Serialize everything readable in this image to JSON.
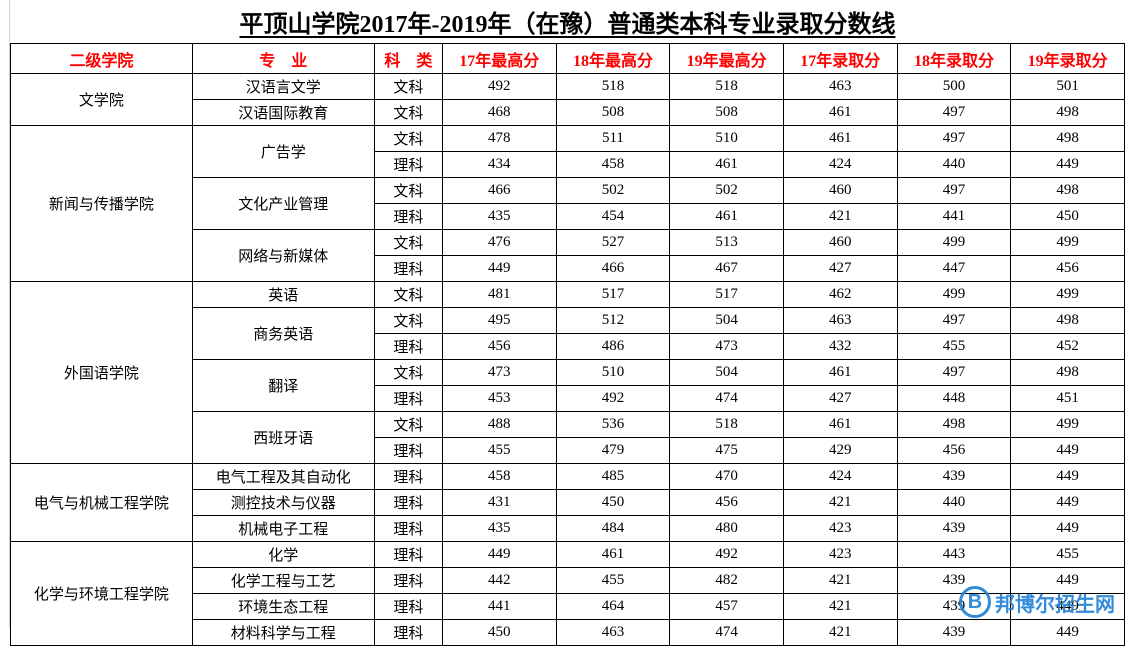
{
  "title": "平顶山学院2017年-2019年（在豫）普通类本科专业录取分数线",
  "headers": {
    "school": "二级学院",
    "major": "专　业",
    "type": "科　类",
    "max17": "17年最高分",
    "max18": "18年最高分",
    "max19": "19年最高分",
    "adm17": "17年录取分",
    "adm18": "18年录取分",
    "adm19": "19年录取分"
  },
  "schools": [
    {
      "name": "文学院",
      "rows": [
        {
          "major": "汉语言文学",
          "type": "文科",
          "max17": "492",
          "max18": "518",
          "max19": "518",
          "adm17": "463",
          "adm18": "500",
          "adm19": "501"
        },
        {
          "major": "汉语国际教育",
          "type": "文科",
          "max17": "468",
          "max18": "508",
          "max19": "508",
          "adm17": "461",
          "adm18": "497",
          "adm19": "498"
        }
      ]
    },
    {
      "name": "新闻与传播学院",
      "majorGroups": [
        {
          "major": "广告学",
          "rows": [
            {
              "type": "文科",
              "max17": "478",
              "max18": "511",
              "max19": "510",
              "adm17": "461",
              "adm18": "497",
              "adm19": "498"
            },
            {
              "type": "理科",
              "max17": "434",
              "max18": "458",
              "max19": "461",
              "adm17": "424",
              "adm18": "440",
              "adm19": "449"
            }
          ]
        },
        {
          "major": "文化产业管理",
          "rows": [
            {
              "type": "文科",
              "max17": "466",
              "max18": "502",
              "max19": "502",
              "adm17": "460",
              "adm18": "497",
              "adm19": "498"
            },
            {
              "type": "理科",
              "max17": "435",
              "max18": "454",
              "max19": "461",
              "adm17": "421",
              "adm18": "441",
              "adm19": "450"
            }
          ]
        },
        {
          "major": "网络与新媒体",
          "rows": [
            {
              "type": "文科",
              "max17": "476",
              "max18": "527",
              "max19": "513",
              "adm17": "460",
              "adm18": "499",
              "adm19": "499"
            },
            {
              "type": "理科",
              "max17": "449",
              "max18": "466",
              "max19": "467",
              "adm17": "427",
              "adm18": "447",
              "adm19": "456"
            }
          ]
        }
      ]
    },
    {
      "name": "外国语学院",
      "majorGroups": [
        {
          "major": "英语",
          "rows": [
            {
              "type": "文科",
              "max17": "481",
              "max18": "517",
              "max19": "517",
              "adm17": "462",
              "adm18": "499",
              "adm19": "499"
            }
          ]
        },
        {
          "major": "商务英语",
          "rows": [
            {
              "type": "文科",
              "max17": "495",
              "max18": "512",
              "max19": "504",
              "adm17": "463",
              "adm18": "497",
              "adm19": "498"
            },
            {
              "type": "理科",
              "max17": "456",
              "max18": "486",
              "max19": "473",
              "adm17": "432",
              "adm18": "455",
              "adm19": "452"
            }
          ]
        },
        {
          "major": "翻译",
          "rows": [
            {
              "type": "文科",
              "max17": "473",
              "max18": "510",
              "max19": "504",
              "adm17": "461",
              "adm18": "497",
              "adm19": "498"
            },
            {
              "type": "理科",
              "max17": "453",
              "max18": "492",
              "max19": "474",
              "adm17": "427",
              "adm18": "448",
              "adm19": "451"
            }
          ]
        },
        {
          "major": "西班牙语",
          "rows": [
            {
              "type": "文科",
              "max17": "488",
              "max18": "536",
              "max19": "518",
              "adm17": "461",
              "adm18": "498",
              "adm19": "499"
            },
            {
              "type": "理科",
              "max17": "455",
              "max18": "479",
              "max19": "475",
              "adm17": "429",
              "adm18": "456",
              "adm19": "449"
            }
          ]
        }
      ]
    },
    {
      "name": "电气与机械工程学院",
      "rows": [
        {
          "major": "电气工程及其自动化",
          "type": "理科",
          "max17": "458",
          "max18": "485",
          "max19": "470",
          "adm17": "424",
          "adm18": "439",
          "adm19": "449"
        },
        {
          "major": "测控技术与仪器",
          "type": "理科",
          "max17": "431",
          "max18": "450",
          "max19": "456",
          "adm17": "421",
          "adm18": "440",
          "adm19": "449"
        },
        {
          "major": "机械电子工程",
          "type": "理科",
          "max17": "435",
          "max18": "484",
          "max19": "480",
          "adm17": "423",
          "adm18": "439",
          "adm19": "449"
        }
      ]
    },
    {
      "name": "化学与环境工程学院",
      "rows": [
        {
          "major": "化学",
          "type": "理科",
          "max17": "449",
          "max18": "461",
          "max19": "492",
          "adm17": "423",
          "adm18": "443",
          "adm19": "455"
        },
        {
          "major": "化学工程与工艺",
          "type": "理科",
          "max17": "442",
          "max18": "455",
          "max19": "482",
          "adm17": "421",
          "adm18": "439",
          "adm19": "449"
        },
        {
          "major": "环境生态工程",
          "type": "理科",
          "max17": "441",
          "max18": "464",
          "max19": "457",
          "adm17": "421",
          "adm18": "439",
          "adm19": "449"
        },
        {
          "major": "材料科学与工程",
          "type": "理科",
          "max17": "450",
          "max18": "463",
          "max19": "474",
          "adm17": "421",
          "adm18": "439",
          "adm19": "449"
        }
      ]
    }
  ],
  "watermark": {
    "logo": "B",
    "text": "邦博尔招生网"
  },
  "styling": {
    "title_fontsize": 24,
    "header_color": "#ff0000",
    "border_color": "#000000",
    "cell_fontsize": 15,
    "watermark_color": "#1e7fd6",
    "background": "#ffffff"
  }
}
